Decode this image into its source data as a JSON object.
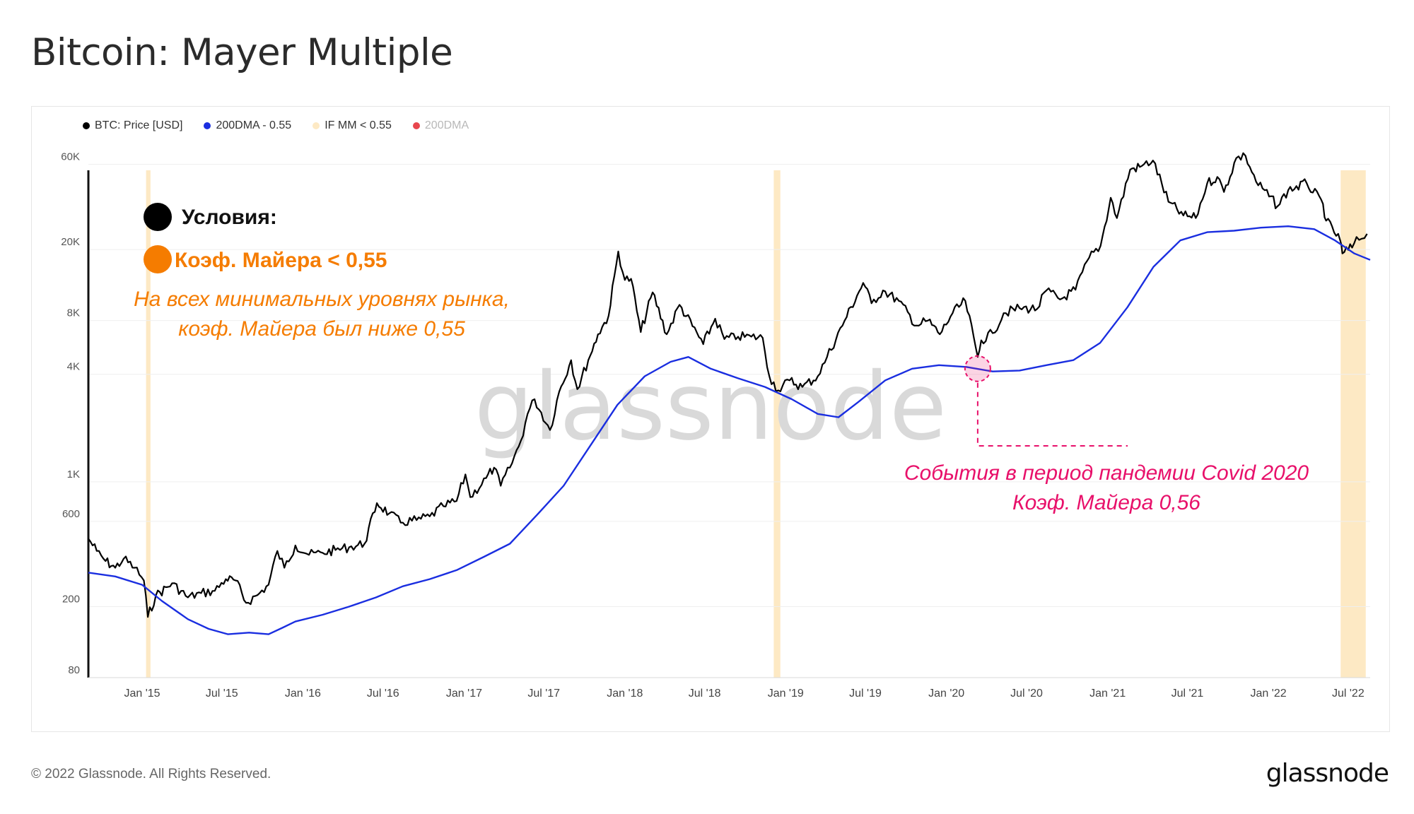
{
  "header": {
    "title": "Bitcoin: Mayer Multiple"
  },
  "footer": {
    "copyright": "© 2022 Glassnode. All Rights Reserved.",
    "logo": "glassnode"
  },
  "watermark": "glassnode",
  "colors": {
    "price": "#000000",
    "ma": "#1a2ee0",
    "band": "#fde9c4",
    "ma_red": "#e8464d",
    "accent_orange": "#f57c00",
    "accent_pink": "#e8106a"
  },
  "chart_data": {
    "type": "line",
    "title": "Bitcoin: Mayer Multiple",
    "y_scale": "log",
    "ylim": [
      80,
      80000
    ],
    "xlim": [
      "2014-09-01",
      "2022-08-20"
    ],
    "y_ticks": [
      {
        "value": 60000,
        "label": "60K"
      },
      {
        "value": 20000,
        "label": "20K"
      },
      {
        "value": 8000,
        "label": "8K"
      },
      {
        "value": 4000,
        "label": "4K"
      },
      {
        "value": 1000,
        "label": "1K"
      },
      {
        "value": 600,
        "label": "600"
      },
      {
        "value": 200,
        "label": "200"
      },
      {
        "value": 80,
        "label": "80"
      }
    ],
    "x_ticks": [
      {
        "date": "2015-01-01",
        "label": "Jan '15"
      },
      {
        "date": "2015-07-01",
        "label": "Jul '15"
      },
      {
        "date": "2016-01-01",
        "label": "Jan '16"
      },
      {
        "date": "2016-07-01",
        "label": "Jul '16"
      },
      {
        "date": "2017-01-01",
        "label": "Jan '17"
      },
      {
        "date": "2017-07-01",
        "label": "Jul '17"
      },
      {
        "date": "2018-01-01",
        "label": "Jan '18"
      },
      {
        "date": "2018-07-01",
        "label": "Jul '18"
      },
      {
        "date": "2019-01-01",
        "label": "Jan '19"
      },
      {
        "date": "2019-07-01",
        "label": "Jul '19"
      },
      {
        "date": "2020-01-01",
        "label": "Jan '20"
      },
      {
        "date": "2020-07-01",
        "label": "Jul '20"
      },
      {
        "date": "2021-01-01",
        "label": "Jan '21"
      },
      {
        "date": "2021-07-01",
        "label": "Jul '21"
      },
      {
        "date": "2022-01-01",
        "label": "Jan '22"
      },
      {
        "date": "2022-07-01",
        "label": "Jul '22"
      }
    ],
    "legend": [
      {
        "label": "BTC: Price [USD]",
        "color": "#000000",
        "muted": false
      },
      {
        "label": "200DMA - 0.55",
        "color": "#1a2ee0",
        "muted": false
      },
      {
        "label": "IF MM < 0.55",
        "color": "#fde9c4",
        "muted": false
      },
      {
        "label": "200DMA",
        "color": "#e8464d",
        "muted": true
      }
    ],
    "series": [
      {
        "name": "BTC: Price [USD]",
        "points": [
          [
            "2014-09-01",
            480
          ],
          [
            "2014-09-20",
            410
          ],
          [
            "2014-10-10",
            360
          ],
          [
            "2014-11-01",
            330
          ],
          [
            "2014-11-20",
            370
          ],
          [
            "2014-12-15",
            330
          ],
          [
            "2015-01-05",
            280
          ],
          [
            "2015-01-14",
            175
          ],
          [
            "2015-02-01",
            230
          ],
          [
            "2015-03-10",
            270
          ],
          [
            "2015-04-15",
            225
          ],
          [
            "2015-05-15",
            238
          ],
          [
            "2015-06-15",
            245
          ],
          [
            "2015-07-10",
            285
          ],
          [
            "2015-08-01",
            280
          ],
          [
            "2015-08-25",
            210
          ],
          [
            "2015-09-20",
            232
          ],
          [
            "2015-10-15",
            265
          ],
          [
            "2015-11-04",
            410
          ],
          [
            "2015-11-20",
            330
          ],
          [
            "2015-12-15",
            440
          ],
          [
            "2016-01-15",
            390
          ],
          [
            "2016-02-15",
            400
          ],
          [
            "2016-03-15",
            415
          ],
          [
            "2016-04-15",
            430
          ],
          [
            "2016-05-20",
            450
          ],
          [
            "2016-06-17",
            760
          ],
          [
            "2016-07-15",
            665
          ],
          [
            "2016-08-10",
            590
          ],
          [
            "2016-09-15",
            610
          ],
          [
            "2016-10-15",
            640
          ],
          [
            "2016-11-15",
            730
          ],
          [
            "2016-12-15",
            780
          ],
          [
            "2017-01-04",
            1100
          ],
          [
            "2017-01-15",
            820
          ],
          [
            "2017-02-20",
            1050
          ],
          [
            "2017-03-10",
            1200
          ],
          [
            "2017-03-25",
            950
          ],
          [
            "2017-04-15",
            1200
          ],
          [
            "2017-05-10",
            1700
          ],
          [
            "2017-05-25",
            2400
          ],
          [
            "2017-06-10",
            2900
          ],
          [
            "2017-07-15",
            1950
          ],
          [
            "2017-08-05",
            3200
          ],
          [
            "2017-09-01",
            4800
          ],
          [
            "2017-09-15",
            3300
          ],
          [
            "2017-10-10",
            4800
          ],
          [
            "2017-11-01",
            6700
          ],
          [
            "2017-11-25",
            8500
          ],
          [
            "2017-12-17",
            19500
          ],
          [
            "2018-01-01",
            13500
          ],
          [
            "2018-01-15",
            13700
          ],
          [
            "2018-02-06",
            6900
          ],
          [
            "2018-03-05",
            11500
          ],
          [
            "2018-04-06",
            6700
          ],
          [
            "2018-05-05",
            9800
          ],
          [
            "2018-06-28",
            5900
          ],
          [
            "2018-07-25",
            8200
          ],
          [
            "2018-08-15",
            6300
          ],
          [
            "2018-09-15",
            6500
          ],
          [
            "2018-10-15",
            6500
          ],
          [
            "2018-11-10",
            6400
          ],
          [
            "2018-11-25",
            3900
          ],
          [
            "2018-12-15",
            3250
          ],
          [
            "2019-01-10",
            3700
          ],
          [
            "2019-02-08",
            3400
          ],
          [
            "2019-03-15",
            3900
          ],
          [
            "2019-04-05",
            5000
          ],
          [
            "2019-05-15",
            8000
          ],
          [
            "2019-06-26",
            13000
          ],
          [
            "2019-07-15",
            10000
          ],
          [
            "2019-08-10",
            11800
          ],
          [
            "2019-09-15",
            10300
          ],
          [
            "2019-10-25",
            7500
          ],
          [
            "2019-11-20",
            8000
          ],
          [
            "2019-12-17",
            6700
          ],
          [
            "2020-01-15",
            8800
          ],
          [
            "2020-02-13",
            10300
          ],
          [
            "2020-03-12",
            5000
          ],
          [
            "2020-03-20",
            6200
          ],
          [
            "2020-04-15",
            6800
          ],
          [
            "2020-05-10",
            8800
          ],
          [
            "2020-06-15",
            9400
          ],
          [
            "2020-07-25",
            9300
          ],
          [
            "2020-08-15",
            11800
          ],
          [
            "2020-09-15",
            10500
          ],
          [
            "2020-10-20",
            11900
          ],
          [
            "2020-11-20",
            18000
          ],
          [
            "2020-12-16",
            21000
          ],
          [
            "2021-01-08",
            39000
          ],
          [
            "2021-01-22",
            30000
          ],
          [
            "2021-02-21",
            56000
          ],
          [
            "2021-03-15",
            58000
          ],
          [
            "2021-04-14",
            63000
          ],
          [
            "2021-05-19",
            37000
          ],
          [
            "2021-06-22",
            31000
          ],
          [
            "2021-07-20",
            30000
          ],
          [
            "2021-08-15",
            47000
          ],
          [
            "2021-09-07",
            51000
          ],
          [
            "2021-09-22",
            42000
          ],
          [
            "2021-10-20",
            65000
          ],
          [
            "2021-11-10",
            67000
          ],
          [
            "2021-12-04",
            48000
          ],
          [
            "2022-01-22",
            35000
          ],
          [
            "2022-02-15",
            43000
          ],
          [
            "2022-03-29",
            47000
          ],
          [
            "2022-05-05",
            36000
          ],
          [
            "2022-05-12",
            29000
          ],
          [
            "2022-06-13",
            22500
          ],
          [
            "2022-06-18",
            19000
          ],
          [
            "2022-07-10",
            20500
          ],
          [
            "2022-07-20",
            23500
          ],
          [
            "2022-08-01",
            23000
          ],
          [
            "2022-08-13",
            24500
          ]
        ]
      },
      {
        "name": "200DMA - 0.55",
        "points": [
          [
            "2014-09-01",
            310
          ],
          [
            "2014-11-01",
            295
          ],
          [
            "2015-01-01",
            265
          ],
          [
            "2015-02-15",
            215
          ],
          [
            "2015-04-15",
            170
          ],
          [
            "2015-06-01",
            150
          ],
          [
            "2015-07-15",
            140
          ],
          [
            "2015-09-01",
            143
          ],
          [
            "2015-10-15",
            140
          ],
          [
            "2015-11-15",
            152
          ],
          [
            "2015-12-15",
            165
          ],
          [
            "2016-02-15",
            180
          ],
          [
            "2016-04-15",
            200
          ],
          [
            "2016-06-15",
            225
          ],
          [
            "2016-08-15",
            260
          ],
          [
            "2016-10-15",
            285
          ],
          [
            "2016-12-15",
            320
          ],
          [
            "2017-02-15",
            380
          ],
          [
            "2017-04-15",
            450
          ],
          [
            "2017-06-15",
            650
          ],
          [
            "2017-08-15",
            950
          ],
          [
            "2017-10-15",
            1600
          ],
          [
            "2017-12-15",
            2700
          ],
          [
            "2018-02-15",
            3900
          ],
          [
            "2018-04-15",
            4700
          ],
          [
            "2018-05-25",
            5000
          ],
          [
            "2018-07-15",
            4300
          ],
          [
            "2018-09-15",
            3800
          ],
          [
            "2018-11-15",
            3400
          ],
          [
            "2019-01-15",
            2900
          ],
          [
            "2019-03-15",
            2400
          ],
          [
            "2019-05-01",
            2300
          ],
          [
            "2019-06-15",
            2800
          ],
          [
            "2019-08-15",
            3700
          ],
          [
            "2019-10-15",
            4300
          ],
          [
            "2019-12-15",
            4500
          ],
          [
            "2020-02-15",
            4400
          ],
          [
            "2020-04-15",
            4150
          ],
          [
            "2020-06-15",
            4200
          ],
          [
            "2020-08-15",
            4500
          ],
          [
            "2020-10-15",
            4800
          ],
          [
            "2020-12-15",
            6000
          ],
          [
            "2021-02-15",
            9500
          ],
          [
            "2021-04-15",
            16000
          ],
          [
            "2021-06-15",
            22500
          ],
          [
            "2021-08-15",
            25000
          ],
          [
            "2021-10-15",
            25500
          ],
          [
            "2021-12-15",
            26500
          ],
          [
            "2022-02-15",
            27000
          ],
          [
            "2022-04-15",
            26000
          ],
          [
            "2022-06-01",
            22500
          ],
          [
            "2022-07-15",
            19000
          ],
          [
            "2022-08-20",
            17500
          ]
        ]
      }
    ],
    "highlight_ranges": [
      [
        "2015-01-10",
        "2015-01-20"
      ],
      [
        "2018-12-05",
        "2018-12-20"
      ],
      [
        "2022-06-14",
        "2022-08-10"
      ]
    ],
    "annotations": {
      "conditions_label": "Условия:",
      "mm_label": "Коэф. Майера < 0,55",
      "lows_note": [
        "На всех минимальных уровнях рынка,",
        "коэф. Майера был ниже 0,55"
      ],
      "covid_note": [
        "События в период пандемии Covid 2020",
        "Коэф. Майера 0,56"
      ],
      "covid_point": {
        "date": "2020-03-12",
        "value": 4300
      }
    }
  }
}
